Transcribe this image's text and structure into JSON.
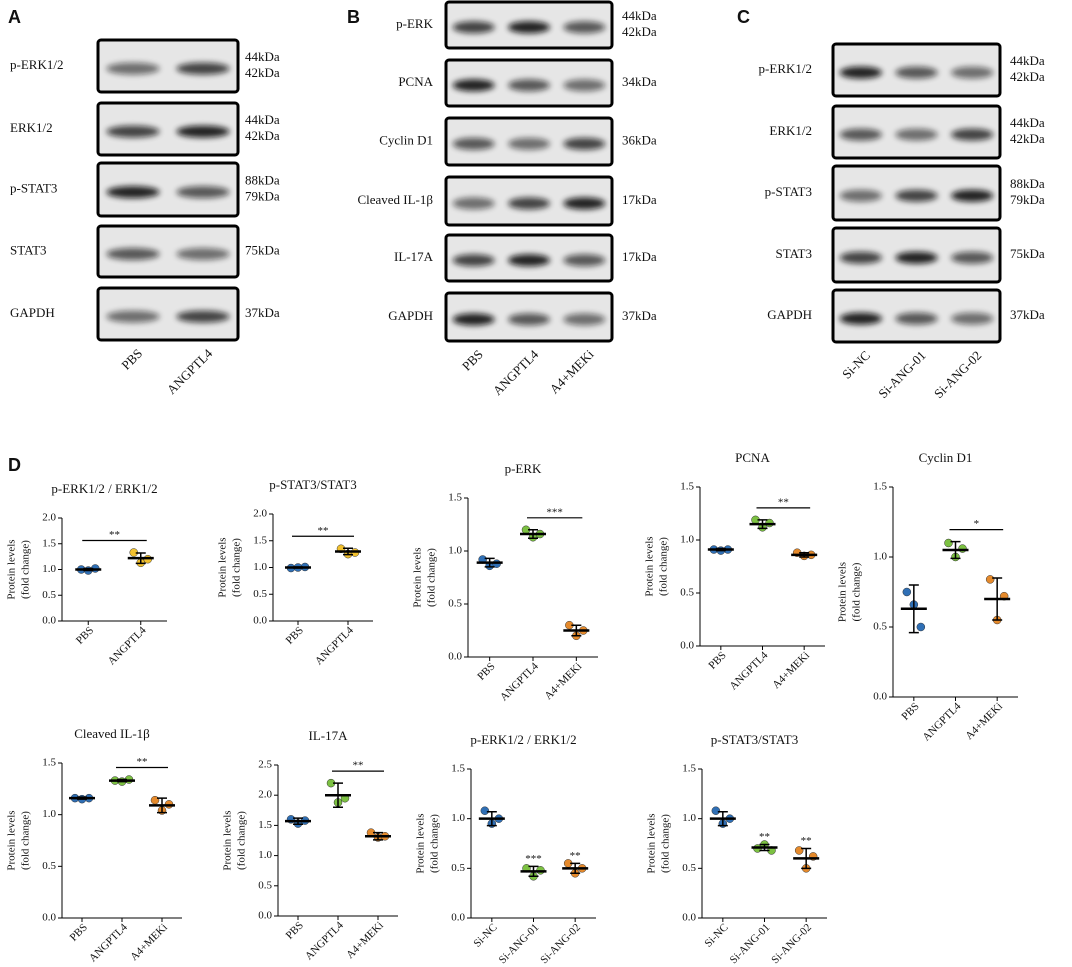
{
  "blots": [
    {
      "letter": "A",
      "rows": [
        {
          "protein": "p-ERK1/2",
          "kda": [
            "44kDa",
            "42kDa"
          ]
        },
        {
          "protein": "ERK1/2",
          "kda": [
            "44kDa",
            "42kDa"
          ]
        },
        {
          "protein": "p-STAT3",
          "kda": [
            "88kDa",
            "79kDa"
          ]
        },
        {
          "protein": "STAT3",
          "kda": [
            "75kDa"
          ]
        },
        {
          "protein": "GAPDH",
          "kda": [
            "37kDa"
          ]
        }
      ],
      "lanes": [
        "PBS",
        "ANGPTL4"
      ]
    },
    {
      "letter": "B",
      "rows": [
        {
          "protein": "p-ERK",
          "kda": [
            "44kDa",
            "42kDa"
          ]
        },
        {
          "protein": "PCNA",
          "kda": [
            "34kDa"
          ]
        },
        {
          "protein": "Cyclin D1",
          "kda": [
            "36kDa"
          ]
        },
        {
          "protein": "Cleaved IL-1β",
          "kda": [
            "17kDa"
          ]
        },
        {
          "protein": "IL-17A",
          "kda": [
            "17kDa"
          ]
        },
        {
          "protein": "GAPDH",
          "kda": [
            "37kDa"
          ]
        }
      ],
      "lanes": [
        "PBS",
        "ANGPTL4",
        "A4+MEKi"
      ]
    },
    {
      "letter": "C",
      "rows": [
        {
          "protein": "p-ERK1/2",
          "kda": [
            "44kDa",
            "42kDa"
          ]
        },
        {
          "protein": "ERK1/2",
          "kda": [
            "44kDa",
            "42kDa"
          ]
        },
        {
          "protein": "p-STAT3",
          "kda": [
            "88kDa",
            "79kDa"
          ]
        },
        {
          "protein": "STAT3",
          "kda": [
            "75kDa"
          ]
        },
        {
          "protein": "GAPDH",
          "kda": [
            "37kDa"
          ]
        }
      ],
      "lanes": [
        "Si-NC",
        "Si-ANG-01",
        "Si-ANG-02"
      ]
    }
  ],
  "panel_d": {
    "letter": "D"
  },
  "chart_data": [
    {
      "type": "scatter",
      "title": "p-ERK1/2 / ERK1/2",
      "ylabel": [
        "Protein levels",
        "(fold change)"
      ],
      "categories": [
        "PBS",
        "ANGPTL4"
      ],
      "colors": [
        "#2f6fb5",
        "#f2c12e"
      ],
      "points": [
        [
          1.0,
          0.98,
          1.02
        ],
        [
          1.33,
          1.13,
          1.2
        ]
      ],
      "means": [
        1.0,
        1.22
      ],
      "sd": [
        0.02,
        0.1
      ],
      "ylim": [
        0,
        2
      ],
      "yticks": [
        {
          "value": 0,
          "label": "0.0"
        },
        0.5,
        {
          "value": 1,
          "label": "1.0"
        },
        1.5,
        {
          "value": 2,
          "label": "2.0"
        }
      ],
      "significance": [
        {
          "text": "**",
          "between": [
            "PBS",
            "ANGPTL4"
          ]
        }
      ]
    },
    {
      "type": "scatter",
      "title": "p-STAT3/STAT3",
      "ylabel": [
        "Protein levels",
        "(fold change)"
      ],
      "categories": [
        "PBS",
        "ANGPTL4"
      ],
      "colors": [
        "#2f6fb5",
        "#f2c12e"
      ],
      "points": [
        [
          0.99,
          1.0,
          1.01
        ],
        [
          1.35,
          1.25,
          1.28
        ]
      ],
      "means": [
        1.0,
        1.3
      ],
      "sd": [
        0.01,
        0.06
      ],
      "ylim": [
        0,
        2
      ],
      "yticks": [
        {
          "value": 0,
          "label": "0.0"
        },
        0.5,
        {
          "value": 1,
          "label": "1.0"
        },
        1.5,
        {
          "value": 2,
          "label": "2.0"
        }
      ],
      "significance": [
        {
          "text": "**",
          "between": [
            "PBS",
            "ANGPTL4"
          ]
        }
      ]
    },
    {
      "type": "scatter",
      "title": "p-ERK",
      "ylabel": [
        "Protein levels",
        "(fold change)"
      ],
      "categories": [
        "PBS",
        "ANGPTL4",
        "A4+MEKi"
      ],
      "colors": [
        "#2f6fb5",
        "#7cc142",
        "#e58a2c"
      ],
      "points": [
        [
          0.92,
          0.86,
          0.88
        ],
        [
          1.2,
          1.13,
          1.16
        ],
        [
          0.3,
          0.2,
          0.25
        ]
      ],
      "means": [
        0.89,
        1.16,
        0.25
      ],
      "sd": [
        0.04,
        0.04,
        0.05
      ],
      "ylim": [
        0,
        1.5
      ],
      "yticks": [
        {
          "value": 0,
          "label": "0.0"
        },
        0.5,
        {
          "value": 1,
          "label": "1.0"
        },
        1.5
      ],
      "significance": [
        {
          "text": "***",
          "between": [
            "ANGPTL4",
            "A4+MEKi"
          ]
        }
      ]
    },
    {
      "type": "scatter",
      "title": "PCNA",
      "ylabel": [
        "Protein levels",
        "(fold change)"
      ],
      "categories": [
        "PBS",
        "ANGPTL4",
        "A4+MEKi"
      ],
      "colors": [
        "#2f6fb5",
        "#7cc142",
        "#e58a2c"
      ],
      "points": [
        [
          0.91,
          0.9,
          0.91
        ],
        [
          1.19,
          1.12,
          1.16
        ],
        [
          0.88,
          0.85,
          0.86
        ]
      ],
      "means": [
        0.91,
        1.15,
        0.86
      ],
      "sd": [
        0.01,
        0.04,
        0.02
      ],
      "ylim": [
        0,
        1.5
      ],
      "yticks": [
        {
          "value": 0,
          "label": "0.0"
        },
        0.5,
        {
          "value": 1,
          "label": "1.0"
        },
        1.5
      ],
      "significance": [
        {
          "text": "**",
          "between": [
            "ANGPTL4",
            "A4+MEKi"
          ]
        }
      ]
    },
    {
      "type": "scatter",
      "title": "Cyclin D1",
      "ylabel": [
        "Protein levels",
        "(fold change)"
      ],
      "categories": [
        "PBS",
        "ANGPTL4",
        "A4+MEKi"
      ],
      "colors": [
        "#2f6fb5",
        "#7cc142",
        "#e58a2c"
      ],
      "points": [
        [
          0.75,
          0.66,
          0.5
        ],
        [
          1.1,
          1.0,
          1.06
        ],
        [
          0.84,
          0.55,
          0.72
        ]
      ],
      "means": [
        0.63,
        1.05,
        0.7
      ],
      "sd": [
        0.17,
        0.06,
        0.15
      ],
      "ylim": [
        0,
        1.5
      ],
      "yticks": [
        {
          "value": 0,
          "label": "0.0"
        },
        0.5,
        {
          "value": 1,
          "label": "1.0"
        },
        1.5
      ],
      "significance": [
        {
          "text": "*",
          "between": [
            "ANGPTL4",
            "A4+MEKi"
          ]
        }
      ]
    },
    {
      "type": "scatter",
      "title": "Cleaved IL-1β",
      "ylabel": [
        "Protein levels",
        "(fold change)"
      ],
      "categories": [
        "PBS",
        "ANGPTL4",
        "A4+MEKi"
      ],
      "colors": [
        "#2f6fb5",
        "#7cc142",
        "#e58a2c"
      ],
      "points": [
        [
          1.16,
          1.15,
          1.16
        ],
        [
          1.33,
          1.32,
          1.34
        ],
        [
          1.14,
          1.04,
          1.1
        ]
      ],
      "means": [
        1.16,
        1.33,
        1.09
      ],
      "sd": [
        0.01,
        0.01,
        0.07
      ],
      "ylim": [
        0,
        1.5
      ],
      "yticks": [
        {
          "value": 0,
          "label": "0.0"
        },
        0.5,
        {
          "value": 1,
          "label": "1.0"
        },
        1.5
      ],
      "significance": [
        {
          "text": "**",
          "between": [
            "ANGPTL4",
            "A4+MEKi"
          ]
        }
      ]
    },
    {
      "type": "scatter",
      "title": "IL-17A",
      "ylabel": [
        "Protein levels",
        "(fold change)"
      ],
      "categories": [
        "PBS",
        "ANGPTL4",
        "A4+MEKi"
      ],
      "colors": [
        "#2f6fb5",
        "#7cc142",
        "#e58a2c"
      ],
      "points": [
        [
          1.6,
          1.53,
          1.58
        ],
        [
          2.2,
          1.88,
          1.95
        ],
        [
          1.38,
          1.3,
          1.32
        ]
      ],
      "means": [
        1.57,
        2.0,
        1.32
      ],
      "sd": [
        0.05,
        0.2,
        0.06
      ],
      "ylim": [
        0,
        2.5
      ],
      "yticks": [
        {
          "value": 0,
          "label": "0.0"
        },
        0.5,
        {
          "value": 1,
          "label": "1.0"
        },
        1.5,
        {
          "value": 2,
          "label": "2.0"
        },
        2.5
      ],
      "significance": [
        {
          "text": "**",
          "between": [
            "ANGPTL4",
            "A4+MEKi"
          ]
        }
      ]
    },
    {
      "type": "scatter",
      "title": "p-ERK1/2 / ERK1/2",
      "ylabel": [
        "Protein levels",
        "(fold change)"
      ],
      "categories": [
        "Si-NC",
        "Si-ANG-01",
        "Si-ANG-02"
      ],
      "colors": [
        "#2f6fb5",
        "#7cc142",
        "#e58a2c"
      ],
      "points": [
        [
          1.08,
          0.95,
          1.0
        ],
        [
          0.5,
          0.42,
          0.48
        ],
        [
          0.55,
          0.45,
          0.5
        ]
      ],
      "means": [
        1.0,
        0.47,
        0.5
      ],
      "sd": [
        0.07,
        0.05,
        0.05
      ],
      "ylim": [
        0,
        1.5
      ],
      "yticks": [
        {
          "value": 0,
          "label": "0.0"
        },
        0.5,
        {
          "value": 1,
          "label": "1.0"
        },
        1.5
      ],
      "significance": [
        {
          "text": "***",
          "over": "Si-ANG-01"
        },
        {
          "text": "**",
          "over": "Si-ANG-02"
        }
      ]
    },
    {
      "type": "scatter",
      "title": "p-STAT3/STAT3",
      "ylabel": [
        "Protein levels",
        "(fold change)"
      ],
      "categories": [
        "Si-NC",
        "Si-ANG-01",
        "Si-ANG-02"
      ],
      "colors": [
        "#2f6fb5",
        "#7cc142",
        "#e58a2c"
      ],
      "points": [
        [
          1.08,
          0.95,
          1.0
        ],
        [
          0.7,
          0.74,
          0.68
        ],
        [
          0.68,
          0.5,
          0.62
        ]
      ],
      "means": [
        1.0,
        0.71,
        0.6
      ],
      "sd": [
        0.07,
        0.03,
        0.1
      ],
      "ylim": [
        0,
        1.5
      ],
      "yticks": [
        {
          "value": 0,
          "label": "0.0"
        },
        0.5,
        {
          "value": 1,
          "label": "1.0"
        },
        1.5
      ],
      "significance": [
        {
          "text": "**",
          "over": "Si-ANG-01"
        },
        {
          "text": "**",
          "over": "Si-ANG-02"
        }
      ]
    }
  ]
}
